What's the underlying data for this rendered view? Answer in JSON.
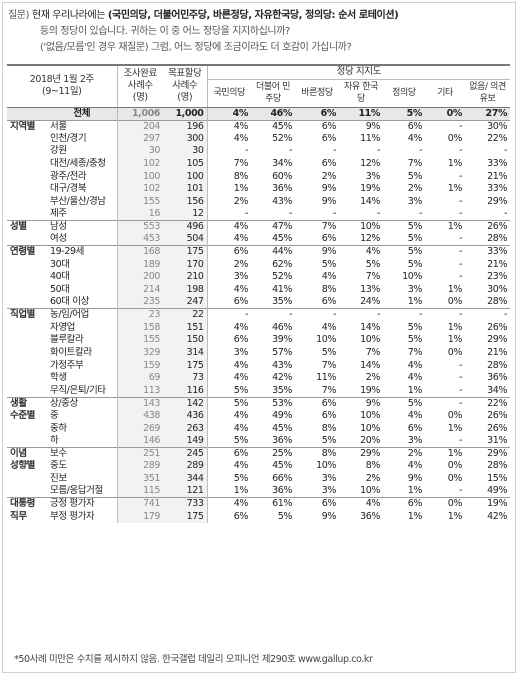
{
  "question": {
    "label": "질문)",
    "line1_prefix": "현재 우리나라에는",
    "line1_bold": "(국민의당, 더불어민주당, 바른정당, 자유한국당, 정의당: 순서 로테이션)",
    "line2": "등의 정당이 있습니다. 귀하는 이 중 어느 정당을 지지하십니까?",
    "line3": "('없음/모름'인 경우 재질문) 그럼, 어느 정당에 조금이라도 더 호감이 가십니까?"
  },
  "header": {
    "period_line1": "2018년 1월 2주",
    "period_line2": "(9~11일)",
    "sample_done": "조사완료 사례수 (명)",
    "sample_target": "목표할당 사례수 (명)",
    "party_support": "정당 지지도",
    "parties": [
      "국민의당",
      "더불어 민주당",
      "바른정당",
      "자유 한국당",
      "정의당",
      "기타",
      "없음/ 의견유보"
    ]
  },
  "rows": [
    {
      "cat": "",
      "sub": "전체",
      "n": "1,006",
      "t": "1,000",
      "v": [
        "4%",
        "46%",
        "6%",
        "11%",
        "5%",
        "0%",
        "27%"
      ],
      "total": true
    },
    {
      "cat": "지역별",
      "sub": "서울",
      "n": "204",
      "t": "196",
      "v": [
        "4%",
        "45%",
        "6%",
        "9%",
        "6%",
        "-",
        "30%"
      ],
      "grp": true
    },
    {
      "cat": "",
      "sub": "인천/경기",
      "n": "297",
      "t": "300",
      "v": [
        "4%",
        "52%",
        "6%",
        "11%",
        "4%",
        "0%",
        "22%"
      ]
    },
    {
      "cat": "",
      "sub": "강원",
      "n": "30",
      "t": "30",
      "v": [
        "-",
        "-",
        "-",
        "-",
        "-",
        "-",
        "-"
      ]
    },
    {
      "cat": "",
      "sub": "대전/세종/충청",
      "n": "102",
      "t": "105",
      "v": [
        "7%",
        "34%",
        "6%",
        "12%",
        "7%",
        "1%",
        "33%"
      ]
    },
    {
      "cat": "",
      "sub": "광주/전라",
      "n": "100",
      "t": "100",
      "v": [
        "8%",
        "60%",
        "2%",
        "3%",
        "5%",
        "-",
        "21%"
      ]
    },
    {
      "cat": "",
      "sub": "대구/경북",
      "n": "102",
      "t": "101",
      "v": [
        "1%",
        "36%",
        "9%",
        "19%",
        "2%",
        "1%",
        "33%"
      ]
    },
    {
      "cat": "",
      "sub": "부산/울산/경남",
      "n": "155",
      "t": "156",
      "v": [
        "2%",
        "43%",
        "9%",
        "14%",
        "3%",
        "-",
        "29%"
      ]
    },
    {
      "cat": "",
      "sub": "제주",
      "n": "16",
      "t": "12",
      "v": [
        "-",
        "-",
        "-",
        "-",
        "-",
        "-",
        "-"
      ]
    },
    {
      "cat": "성별",
      "sub": "남성",
      "n": "553",
      "t": "496",
      "v": [
        "4%",
        "47%",
        "7%",
        "10%",
        "5%",
        "1%",
        "26%"
      ],
      "grp": true
    },
    {
      "cat": "",
      "sub": "여성",
      "n": "453",
      "t": "504",
      "v": [
        "4%",
        "45%",
        "6%",
        "12%",
        "5%",
        "-",
        "28%"
      ]
    },
    {
      "cat": "연령별",
      "sub": "19-29세",
      "n": "168",
      "t": "175",
      "v": [
        "6%",
        "44%",
        "9%",
        "4%",
        "5%",
        "-",
        "33%"
      ],
      "grp": true
    },
    {
      "cat": "",
      "sub": "30대",
      "n": "189",
      "t": "170",
      "v": [
        "2%",
        "62%",
        "5%",
        "5%",
        "5%",
        "-",
        "21%"
      ]
    },
    {
      "cat": "",
      "sub": "40대",
      "n": "200",
      "t": "210",
      "v": [
        "3%",
        "52%",
        "4%",
        "7%",
        "10%",
        "-",
        "23%"
      ]
    },
    {
      "cat": "",
      "sub": "50대",
      "n": "214",
      "t": "198",
      "v": [
        "4%",
        "41%",
        "8%",
        "13%",
        "3%",
        "1%",
        "30%"
      ]
    },
    {
      "cat": "",
      "sub": "60대 이상",
      "n": "235",
      "t": "247",
      "v": [
        "6%",
        "35%",
        "6%",
        "24%",
        "1%",
        "0%",
        "28%"
      ]
    },
    {
      "cat": "직업별",
      "sub": "농/임/어업",
      "n": "23",
      "t": "22",
      "v": [
        "-",
        "-",
        "-",
        "-",
        "-",
        "-",
        "-"
      ],
      "grp": true
    },
    {
      "cat": "",
      "sub": "자영업",
      "n": "158",
      "t": "151",
      "v": [
        "4%",
        "46%",
        "4%",
        "14%",
        "5%",
        "1%",
        "26%"
      ]
    },
    {
      "cat": "",
      "sub": "블루칼라",
      "n": "155",
      "t": "150",
      "v": [
        "6%",
        "39%",
        "10%",
        "10%",
        "5%",
        "1%",
        "29%"
      ]
    },
    {
      "cat": "",
      "sub": "화이트칼라",
      "n": "329",
      "t": "314",
      "v": [
        "3%",
        "57%",
        "5%",
        "7%",
        "7%",
        "0%",
        "21%"
      ]
    },
    {
      "cat": "",
      "sub": "가정주부",
      "n": "159",
      "t": "175",
      "v": [
        "4%",
        "43%",
        "7%",
        "14%",
        "4%",
        "-",
        "28%"
      ]
    },
    {
      "cat": "",
      "sub": "학생",
      "n": "69",
      "t": "73",
      "v": [
        "4%",
        "42%",
        "11%",
        "2%",
        "4%",
        "-",
        "36%"
      ]
    },
    {
      "cat": "",
      "sub": "무직/은퇴/기타",
      "n": "113",
      "t": "116",
      "v": [
        "5%",
        "35%",
        "7%",
        "19%",
        "1%",
        "-",
        "34%"
      ]
    },
    {
      "cat": "생활",
      "sub": "상/중상",
      "n": "143",
      "t": "142",
      "v": [
        "5%",
        "53%",
        "6%",
        "9%",
        "5%",
        "-",
        "22%"
      ],
      "grp": true
    },
    {
      "cat": "수준별",
      "sub": "중",
      "n": "438",
      "t": "436",
      "v": [
        "4%",
        "49%",
        "6%",
        "10%",
        "4%",
        "0%",
        "26%"
      ]
    },
    {
      "cat": "",
      "sub": "중하",
      "n": "269",
      "t": "263",
      "v": [
        "4%",
        "45%",
        "8%",
        "10%",
        "6%",
        "1%",
        "26%"
      ]
    },
    {
      "cat": "",
      "sub": "하",
      "n": "146",
      "t": "149",
      "v": [
        "5%",
        "36%",
        "5%",
        "20%",
        "3%",
        "-",
        "31%"
      ]
    },
    {
      "cat": "이념",
      "sub": "보수",
      "n": "251",
      "t": "245",
      "v": [
        "6%",
        "25%",
        "8%",
        "29%",
        "2%",
        "1%",
        "29%"
      ],
      "grp": true
    },
    {
      "cat": "성향별",
      "sub": "중도",
      "n": "289",
      "t": "289",
      "v": [
        "4%",
        "45%",
        "10%",
        "8%",
        "4%",
        "0%",
        "28%"
      ]
    },
    {
      "cat": "",
      "sub": "진보",
      "n": "351",
      "t": "344",
      "v": [
        "5%",
        "66%",
        "3%",
        "2%",
        "9%",
        "0%",
        "15%"
      ]
    },
    {
      "cat": "",
      "sub": "모름/응답거절",
      "n": "115",
      "t": "121",
      "v": [
        "1%",
        "36%",
        "3%",
        "10%",
        "1%",
        "-",
        "49%"
      ]
    },
    {
      "cat": "대통령",
      "sub": "긍정 평가자",
      "n": "741",
      "t": "733",
      "v": [
        "4%",
        "61%",
        "6%",
        "4%",
        "6%",
        "0%",
        "19%"
      ],
      "grp": true
    },
    {
      "cat": "직무",
      "sub": "부정 평가자",
      "n": "179",
      "t": "175",
      "v": [
        "6%",
        "5%",
        "9%",
        "36%",
        "1%",
        "1%",
        "42%"
      ]
    }
  ],
  "footnote": "*50사례 미만은 수치를 제시하지 않음. 한국갤럽 데일리 오피니언 제290호 www.gallup.co.kr"
}
